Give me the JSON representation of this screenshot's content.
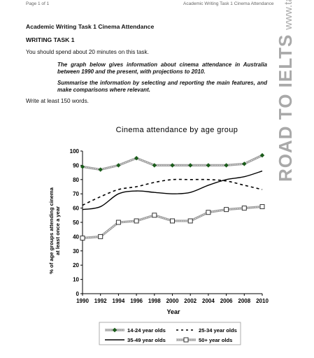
{
  "header": {
    "page_number": "Page 1 of 1",
    "running_title": "Academic Writing Task 1 Cinema Attendance"
  },
  "document": {
    "title": "Academic Writing Task 1 Cinema Attendance",
    "task_label": "WRITING TASK 1",
    "time_note": "You should spend about 20 minutes on this task.",
    "instruction_1": "The graph below gives information about cinema attendance in Australia between 1990 and the present, with projections to 2010.",
    "instruction_2": "Summarise the information by selecting and reporting the main features, and make comparisons where relevant.",
    "min_words": "Write at least 150 words."
  },
  "watermark": {
    "brand": "ROAD TO IELTS",
    "url": "www.takeIELTS.britishcouncil.org"
  },
  "chart_data": {
    "type": "line",
    "title": "Cinema attendance by age group",
    "xlabel": "Year",
    "ylabel_line1": "% of age groups attending cinema",
    "ylabel_line2": "at least once a year",
    "x": [
      1990,
      1992,
      1994,
      1996,
      1998,
      2000,
      2002,
      2004,
      2006,
      2008,
      2010
    ],
    "xlim": [
      1990,
      2010
    ],
    "ylim": [
      0,
      100
    ],
    "yticks": [
      0,
      10,
      20,
      30,
      40,
      50,
      60,
      70,
      80,
      90,
      100
    ],
    "grid": false,
    "legend_position": "bottom",
    "series": [
      {
        "name": "14-24 year olds",
        "values": [
          89,
          87,
          90,
          95,
          90,
          90,
          90,
          90,
          90,
          91,
          97
        ],
        "color": "#9c9c9c",
        "marker": "diamond",
        "marker_color": "#1a5c1a",
        "style": "dotted-band"
      },
      {
        "name": "25-34 year olds",
        "values": [
          62,
          68,
          73,
          75,
          78,
          80,
          80,
          80,
          79,
          76,
          73
        ],
        "color": "#000000",
        "marker": "none",
        "style": "dashed"
      },
      {
        "name": "35-49 year olds",
        "values": [
          59,
          61,
          70,
          72,
          71,
          70,
          71,
          76,
          80,
          82,
          86
        ],
        "color": "#000000",
        "marker": "none",
        "style": "solid"
      },
      {
        "name": "50+ year olds",
        "values": [
          39,
          40,
          50,
          51,
          55,
          51,
          51,
          57,
          59,
          60,
          61
        ],
        "color": "#9c9c9c",
        "marker": "square",
        "marker_color": "#333333",
        "style": "dotted-band"
      }
    ]
  }
}
